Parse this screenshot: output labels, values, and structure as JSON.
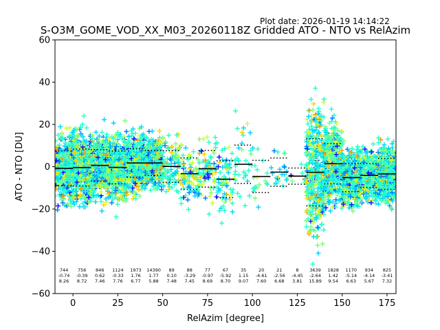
{
  "plot_date": "Plot date: 2026-01-19 14:14:22",
  "chart_data": {
    "type": "scatter",
    "title": "S-O3M_GOME_VOD_XX_M03_20260118Z Gridded ATO - NTO vs RelAzim",
    "xlabel": "RelAzim [degree]",
    "ylabel": "ATO - NTO [DU]",
    "xlim": [
      -10,
      180
    ],
    "ylim": [
      -60,
      60
    ],
    "xticks": [
      0,
      25,
      50,
      75,
      100,
      125,
      150,
      175
    ],
    "xtick_labels": [
      "0",
      "25",
      "50",
      "75",
      "100",
      "125",
      "150",
      "175"
    ],
    "yticks": [
      -60,
      -40,
      -20,
      0,
      20,
      40,
      60
    ],
    "ytick_labels": [
      "−60",
      "−40",
      "−20",
      "0",
      "20",
      "40",
      "60"
    ],
    "grid": false,
    "marker": "+",
    "colors": [
      "#1a0dff",
      "#0080ff",
      "#00d6ff",
      "#29ffce",
      "#7cff79",
      "#ceff29",
      "#ffd300",
      "#ff9900"
    ],
    "bins": [
      {
        "x": -5,
        "count": "744",
        "mean": "-0.74",
        "std": "8.26"
      },
      {
        "x": 5,
        "count": "756",
        "mean": "-0.39",
        "std": "8.72"
      },
      {
        "x": 15,
        "count": "846",
        "mean": "0.62",
        "std": "7.46"
      },
      {
        "x": 25,
        "count": "1124",
        "mean": "-0.33",
        "std": "7.76"
      },
      {
        "x": 35,
        "count": "1973",
        "mean": "1.76",
        "std": "6.77"
      },
      {
        "x": 45,
        "count": "14390",
        "mean": "1.77",
        "std": "5.88"
      },
      {
        "x": 55,
        "count": "89",
        "mean": "0.10",
        "std": "7.48"
      },
      {
        "x": 65,
        "count": "88",
        "mean": "-3.29",
        "std": "7.45"
      },
      {
        "x": 75,
        "count": "77",
        "mean": "-0.97",
        "std": "8.69"
      },
      {
        "x": 85,
        "count": "67",
        "mean": "-5.92",
        "std": "8.70"
      },
      {
        "x": 95,
        "count": "35",
        "mean": "1.15",
        "std": "9.07"
      },
      {
        "x": 105,
        "count": "20",
        "mean": "-4.61",
        "std": "7.60"
      },
      {
        "x": 115,
        "count": "21",
        "mean": "-2.56",
        "std": "6.68"
      },
      {
        "x": 125,
        "count": "8",
        "mean": "-4.45",
        "std": "3.81"
      },
      {
        "x": 135,
        "count": "3639",
        "mean": "-2.64",
        "std": "15.89"
      },
      {
        "x": 145,
        "count": "1828",
        "mean": "1.42",
        "std": "9.54"
      },
      {
        "x": 155,
        "count": "1170",
        "mean": "-5.14",
        "std": "6.63"
      },
      {
        "x": 165,
        "count": "934",
        "mean": "-4.14",
        "std": "5.67"
      },
      {
        "x": 175,
        "count": "825",
        "mean": "-3.41",
        "std": "7.32"
      }
    ]
  }
}
